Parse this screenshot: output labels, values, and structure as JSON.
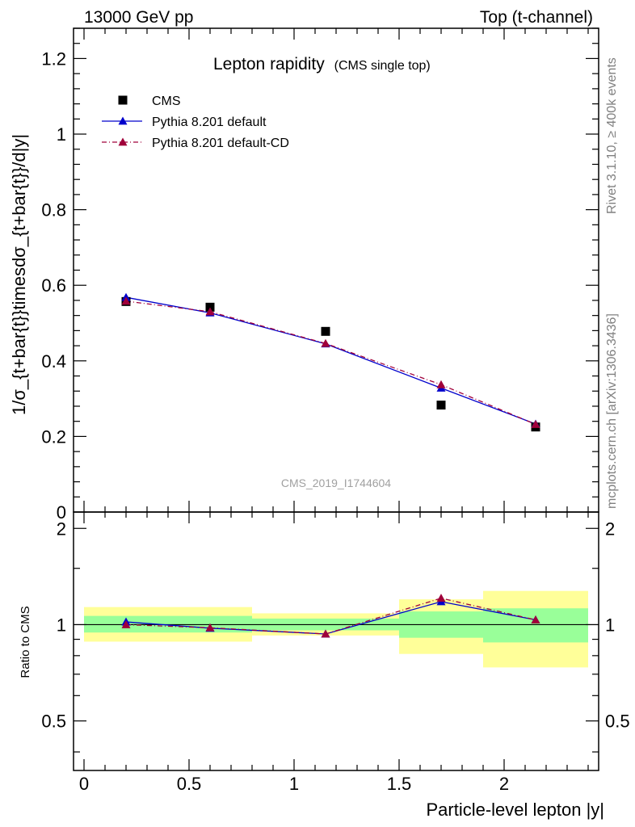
{
  "header": {
    "left": "13000 GeV pp",
    "right": "Top (t-channel)"
  },
  "side_labels": {
    "rivet": "Rivet 3.1.10, ≥ 400k events",
    "mcplots": "mcplots.cern.ch [arXiv:1306.3436]"
  },
  "chart_data": {
    "type": "scatter",
    "title": "Lepton rapidity",
    "subtitle": "(CMS single top)",
    "watermark": "CMS_2019_I1744604",
    "xlabel": "Particle-level lepton |y|",
    "ylabel": "1/σ_{t+bar{t}}timesdσ_{t+bar{t}}/d|y|",
    "ratio_ylabel": "Ratio to CMS",
    "xlim": [
      -0.05,
      2.45
    ],
    "ylim": [
      0,
      1.28
    ],
    "ratio_ylim": [
      0.35,
      2.25
    ],
    "x_ticks": [
      "0",
      "0.5",
      "1",
      "1.5",
      "2"
    ],
    "x_tick_values": [
      0,
      0.5,
      1,
      1.5,
      2
    ],
    "y_ticks": [
      "0",
      "0.2",
      "0.4",
      "0.6",
      "0.8",
      "1",
      "1.2"
    ],
    "y_tick_values": [
      0,
      0.2,
      0.4,
      0.6,
      0.8,
      1.0,
      1.2
    ],
    "ratio_ticks": [
      "0.5",
      "1",
      "2"
    ],
    "ratio_tick_values": [
      0.5,
      1,
      2
    ],
    "legend_position": "top-left",
    "bins": [
      [
        0,
        0.4
      ],
      [
        0.4,
        0.8
      ],
      [
        0.8,
        1.5
      ],
      [
        1.5,
        1.9
      ],
      [
        1.9,
        2.4
      ]
    ],
    "x": [
      0.2,
      0.6,
      1.15,
      1.7,
      2.15
    ],
    "series": [
      {
        "name": "CMS",
        "style": "square",
        "color": "#000000",
        "values": [
          0.557,
          0.542,
          0.478,
          0.283,
          0.225
        ]
      },
      {
        "name": "Pythia 8.201 default",
        "style": "line-triangle",
        "color": "#0000cc",
        "values": [
          0.568,
          0.527,
          0.445,
          0.328,
          0.233
        ]
      },
      {
        "name": "Pythia 8.201 default-CD",
        "style": "dashdot-triangle",
        "color": "#a0003a",
        "values": [
          0.558,
          0.53,
          0.446,
          0.337,
          0.232
        ]
      }
    ],
    "ratio": {
      "Pythia 8.201 default": [
        1.02,
        0.975,
        0.935,
        1.18,
        1.035
      ],
      "Pythia 8.201 default-CD": [
        1.0,
        0.978,
        0.935,
        1.21,
        1.035
      ]
    },
    "uncertainty_bands": {
      "inner_color": "#99ff99",
      "outer_color": "#ffff99",
      "inner": [
        [
          0.945,
          1.065
        ],
        [
          0.945,
          1.065
        ],
        [
          0.96,
          1.045
        ],
        [
          0.91,
          1.1
        ],
        [
          0.88,
          1.125
        ]
      ],
      "outer": [
        [
          0.885,
          1.135
        ],
        [
          0.885,
          1.135
        ],
        [
          0.925,
          1.085
        ],
        [
          0.81,
          1.2
        ],
        [
          0.735,
          1.275
        ]
      ]
    }
  }
}
